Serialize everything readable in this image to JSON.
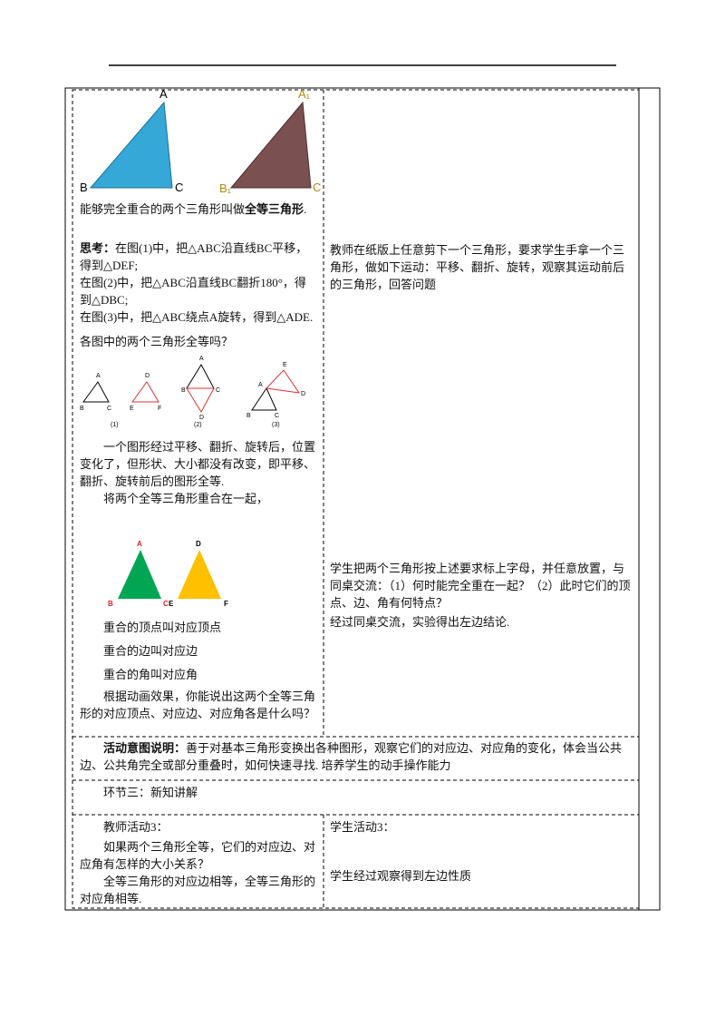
{
  "top_left": {
    "fig_a_labels": [
      "A",
      "B",
      "C"
    ],
    "fig_a1_labels": [
      "A₁",
      "B₁",
      "C"
    ],
    "definition": [
      "能够完全重合的两个三角形叫做",
      "全等三角形",
      "."
    ],
    "think_label": "思考：",
    "think_text": "在图(1)中，把△ABC沿直线BC平移，得到△DEF;",
    "think_lines": [
      "在图(2)中，把△ABC沿直线BC翻折180°，得到△DBC;",
      "在图(3)中，把△ABC绕点A旋转，得到△ADE.",
      "各图中的两个三角形全等吗？"
    ],
    "small_fig1_labels": [
      "A",
      "B",
      "C",
      "D",
      "E",
      "F"
    ],
    "small_fig2_labels": [
      "A",
      "B",
      "C",
      "D"
    ],
    "small_fig3_labels": [
      "A",
      "B",
      "C",
      "D",
      "E"
    ],
    "small_fig_captions": [
      "(1)",
      "(2)",
      "(3)"
    ],
    "transform_para": "一个图形经过平移、翻折、旋转后，位置变化了，但形状、大小都没有改变，即平移、翻折、旋转前后的图形全等.",
    "overlap_para": "将两个全等三角形重合在一起，",
    "color_fig_labels": [
      "A",
      "B",
      "C",
      "E",
      "D",
      "F"
    ],
    "correspond_lines": [
      "重合的顶点叫对应顶点",
      "重合的边叫对应边",
      "重合的角叫对应角"
    ],
    "question": "根据动画效果，你能说出这两个全等三角形的对应顶点、对应边、对应角各是什么吗？"
  },
  "top_right": {
    "teacher_para": "教师在纸版上任意剪下一个三角形，要求学生手拿一个三角形，做如下运动：平移、翻折、旋转，观察其运动前后的三角形，回答问题",
    "student_para": "学生把两个三角形按上述要求标上字母，并任意放置，与同桌交流：（1）何时能完全重在一起？（2）此时它们的顶点、边、角有何特点？",
    "conclusion": "经过同桌交流，实验得出左边结论."
  },
  "intent": {
    "label": "活动意图说明：",
    "text": "善于对基本三角形变换出各种图形，观察它们的对应边、对应角的变化，体会当公共边、公共角完全或部分重叠时，如何快速寻找. 培养学生的动手操作能力"
  },
  "section": "环节三：新知讲解",
  "bottom": {
    "teacher_title": "教师活动3：",
    "teacher_question": "如果两个三角形全等，它们的对应边、对应角有怎样的大小关系？",
    "teacher_answer": "全等三角形的对应边相等，全等三角形的对应角相等.",
    "student_title": "学生活动3：",
    "student_text": "学生经过观察得到左边性质"
  }
}
